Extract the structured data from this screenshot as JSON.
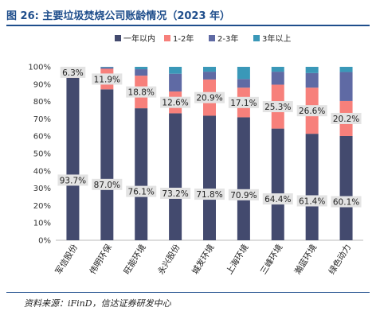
{
  "title": "图 26:  主要垃圾焚烧公司账龄情况（2023 年）",
  "source": "资料来源：iFinD，信达证券研发中心",
  "colors": {
    "s1": "#434a6e",
    "s2": "#f7807b",
    "s3": "#5f6aa4",
    "s4": "#3a98b8",
    "title": "#1f4e8c"
  },
  "chart_data": {
    "type": "bar",
    "stacked": true,
    "categories": [
      "军信股份",
      "伟明环保",
      "旺能环境",
      "永兴股份",
      "城发环境",
      "上海环境",
      "三峰环境",
      "瀚蓝环境",
      "绿色动力"
    ],
    "series": [
      {
        "name": "一年以内",
        "values": [
          93.7,
          87.0,
          76.1,
          73.2,
          71.8,
          70.9,
          64.4,
          61.4,
          60.1
        ]
      },
      {
        "name": "1-2年",
        "values": [
          6.3,
          11.9,
          18.8,
          12.6,
          20.9,
          17.1,
          25.3,
          26.6,
          20.2
        ]
      },
      {
        "name": "2-3年",
        "values": [
          0,
          0.8,
          3.7,
          10.2,
          4.5,
          5.0,
          7.5,
          8.4,
          16.7
        ]
      },
      {
        "name": "3年以上",
        "values": [
          0,
          0.3,
          1.4,
          4.0,
          2.8,
          7.0,
          2.8,
          3.6,
          3.0
        ]
      }
    ],
    "data_labels": {
      "s1": [
        "93.7%",
        "87.0%",
        "76.1%",
        "73.2%",
        "71.8%",
        "70.9%",
        "64.4%",
        "61.4%",
        "60.1%"
      ],
      "s2": [
        "6.3%",
        "11.9%",
        "18.8%",
        "12.6%",
        "20.9%",
        "17.1%",
        "25.3%",
        "26.6%",
        "20.2%"
      ]
    },
    "y_ticks": [
      "0%",
      "10%",
      "20%",
      "30%",
      "40%",
      "50%",
      "60%",
      "70%",
      "80%",
      "90%",
      "100%"
    ],
    "ylim": [
      0,
      100
    ],
    "legend_position": "top",
    "grid": false
  }
}
